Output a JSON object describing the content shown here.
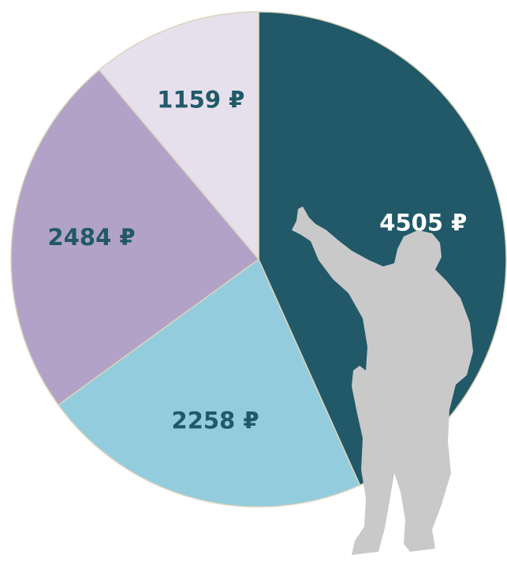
{
  "chart_data": {
    "type": "pie",
    "categories": [
      null,
      null,
      null,
      null
    ],
    "values": [
      4505,
      2258,
      2484,
      1159
    ],
    "value_labels": [
      "4505 ₽",
      "2258 ₽",
      "2484 ₽",
      "1159 ₽"
    ],
    "colors": [
      "#215968",
      "#93cddd",
      "#b3a2c7",
      "#e6e0ec"
    ],
    "label_colors": [
      "#ffffff",
      "#215968",
      "#215968",
      "#215968"
    ]
  }
}
